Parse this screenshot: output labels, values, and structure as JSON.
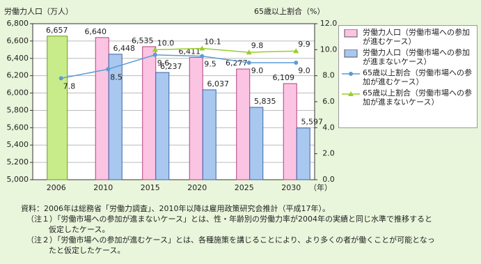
{
  "chart_data": {
    "type": "bar-line",
    "ylabel": "労働力人口（万人）",
    "y2label": "65歳以上割合（%）",
    "xunit": "（年）",
    "categories": [
      "2006",
      "2010",
      "2015",
      "2020",
      "2025",
      "2030"
    ],
    "actual": {
      "color": "#c8ec8a",
      "values": [
        6657,
        null,
        null,
        null,
        null,
        null
      ],
      "value_labels": [
        "6,657",
        null,
        null,
        null,
        null,
        null
      ]
    },
    "series": [
      {
        "name": "労働力人口（労働市場への参加が進むケース）",
        "type": "bar",
        "color": "#fbc4e2",
        "values": [
          null,
          6640,
          6535,
          6411,
          6277,
          6109
        ],
        "value_labels": [
          null,
          "6,640",
          "6,535",
          "6,411",
          "6,277",
          "6,109"
        ]
      },
      {
        "name": "労働力人口（労働市場への参加が進まないケース）",
        "type": "bar",
        "color": "#a9c8f0",
        "values": [
          null,
          6448,
          6237,
          6037,
          5835,
          5597
        ],
        "value_labels": [
          null,
          "6,448",
          "6,237",
          "6,037",
          "5,835",
          "5,597"
        ]
      },
      {
        "name": "65歳以上割合（労働市場への参加が進むケース）",
        "type": "line",
        "axis": "y2",
        "color": "#5b9bd5",
        "values": [
          7.8,
          8.5,
          9.6,
          9.5,
          9.0,
          9.0
        ],
        "value_labels": [
          "7.8",
          "8.5",
          "9.6",
          "9.5",
          "9.0",
          "9.0"
        ]
      },
      {
        "name": "65歳以上割合（労働市場への参加が進まないケース）",
        "type": "line",
        "axis": "y2",
        "color": "#9ccc2c",
        "values": [
          null,
          null,
          10.0,
          10.1,
          9.8,
          9.9
        ],
        "value_labels": [
          null,
          null,
          "10.0",
          "10.1",
          "9.8",
          "9.9"
        ]
      }
    ],
    "ylim": [
      5000,
      6800
    ],
    "yticks": [
      {
        "value": 5000,
        "label": "5,000"
      },
      {
        "value": 5200,
        "label": "5,200"
      },
      {
        "value": 5400,
        "label": "5,400"
      },
      {
        "value": 5600,
        "label": "5,600"
      },
      {
        "value": 5800,
        "label": "5,800"
      },
      {
        "value": 6000,
        "label": "6,000"
      },
      {
        "value": 6200,
        "label": "6,200"
      },
      {
        "value": 6400,
        "label": "6,400"
      },
      {
        "value": 6600,
        "label": "6,600"
      },
      {
        "value": 6800,
        "label": "6,800"
      }
    ],
    "y2lim": [
      0,
      12
    ],
    "y2ticks": [
      {
        "value": 0,
        "label": "0.0"
      },
      {
        "value": 2,
        "label": "2.0"
      },
      {
        "value": 4,
        "label": "4.0"
      },
      {
        "value": 6,
        "label": "6.0"
      },
      {
        "value": 8,
        "label": "8.0"
      },
      {
        "value": 10,
        "label": "10.0"
      },
      {
        "value": 12,
        "label": "12.0"
      }
    ],
    "grid": true,
    "notes": [
      "資料：2006年は総務省「労働力調査」、2010年以降は雇用政策研究会推計（平成17年）。",
      "（注１）「労働市場への参加が進まないケース」とは、性・年齢別の労働力率が2004年の実績と同じ水準で推移すると",
      "仮定したケース。",
      "（注２）「労働市場への参加が進むケース」とは、各種施策を講じることにより、より多くの者が働くことが可能となっ",
      "たと仮定したケース。"
    ]
  }
}
